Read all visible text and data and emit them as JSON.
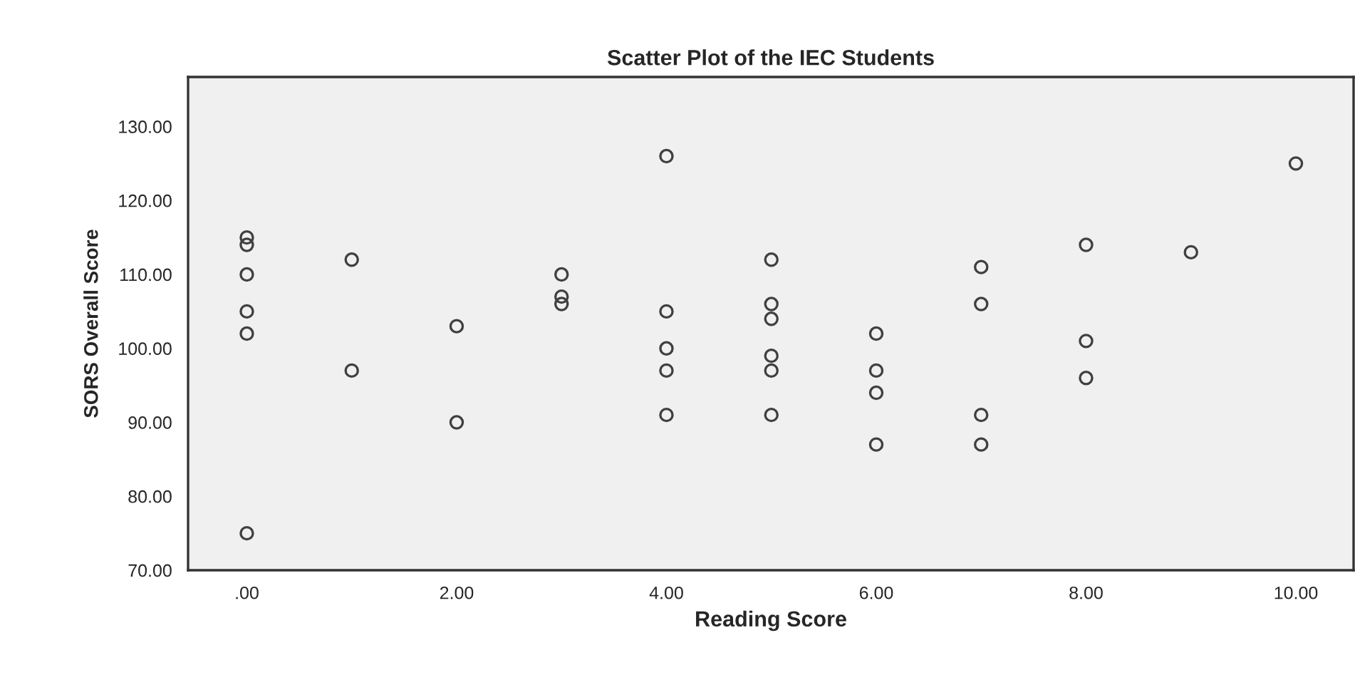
{
  "chart_data": {
    "type": "scatter",
    "title": "Scatter Plot of the IEC Students",
    "xlabel": "Reading Score",
    "ylabel": "SORS Overall Score",
    "series": [
      {
        "color": "#404040",
        "x": [
          0,
          0,
          0,
          0,
          0,
          0,
          1,
          1,
          2,
          2,
          3,
          3,
          3,
          4,
          4,
          4,
          4,
          4,
          5,
          5,
          5,
          5,
          5,
          5,
          6,
          6,
          6,
          6,
          7,
          7,
          7,
          7,
          8,
          8,
          8,
          9,
          10
        ],
        "values": [
          115,
          114,
          110,
          105,
          102,
          75,
          112,
          97,
          103,
          90,
          110,
          107,
          106,
          126,
          105,
          100,
          97,
          91,
          112,
          106,
          104,
          99,
          97,
          91,
          102,
          97,
          94,
          87,
          111,
          106,
          91,
          87,
          114,
          101,
          96,
          113,
          125
        ]
      }
    ],
    "xlim": [
      -0.56,
      10.55
    ],
    "ylim": [
      70,
      136.7
    ],
    "xticks": [
      {
        "value": 0,
        "label": ".00"
      },
      {
        "value": 2,
        "label": "2.00"
      },
      {
        "value": 4,
        "label": "4.00"
      },
      {
        "value": 6,
        "label": "6.00"
      },
      {
        "value": 8,
        "label": "8.00"
      },
      {
        "value": 10,
        "label": "10.00"
      }
    ],
    "yticks": [
      {
        "value": 70,
        "label": "70.00"
      },
      {
        "value": 80,
        "label": "80.00"
      },
      {
        "value": 90,
        "label": "90.00"
      },
      {
        "value": 100,
        "label": "100.00"
      },
      {
        "value": 110,
        "label": "110.00"
      },
      {
        "value": 120,
        "label": "120.00"
      },
      {
        "value": 130,
        "label": "130.00"
      }
    ],
    "marker": "circle",
    "grid": false,
    "legend": false
  }
}
